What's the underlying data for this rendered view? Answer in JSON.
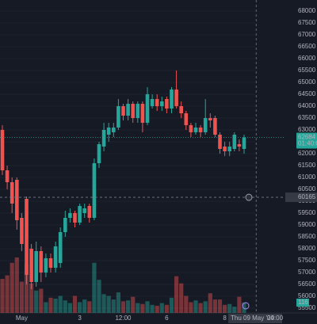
{
  "chart_data": {
    "type": "candlestick",
    "categories": [
      null,
      null,
      null,
      null,
      "May",
      null,
      null,
      null,
      null,
      null,
      null,
      null,
      null,
      null,
      null,
      null,
      "3",
      null,
      null,
      null,
      null,
      null,
      null,
      null,
      null,
      "12:00",
      null,
      null,
      null,
      null,
      null,
      null,
      null,
      null,
      "6",
      null,
      null,
      null,
      null,
      null,
      null,
      null,
      null,
      null,
      null,
      null,
      "8",
      null,
      null,
      null,
      null
    ],
    "open": [
      63000,
      61300,
      60800,
      60900,
      59300,
      60100,
      58000,
      56600,
      57900,
      57000,
      57600,
      57200,
      57400,
      58700,
      59300,
      59500,
      59100,
      59500,
      59800,
      59300,
      61600,
      62300,
      62800,
      62900,
      63100,
      64000,
      63600,
      64100,
      63500,
      64100,
      63300,
      64000,
      64300,
      64000,
      64300,
      63900,
      64700,
      64000,
      63700,
      63200,
      62900,
      63100,
      62900,
      63500,
      63500,
      62800,
      62300,
      62100,
      62200,
      62400,
      62200
    ],
    "high": [
      63200,
      61500,
      61000,
      61000,
      59500,
      60200,
      58200,
      58300,
      58100,
      57800,
      57800,
      58300,
      58900,
      59600,
      59700,
      59600,
      59900,
      59900,
      59900,
      61800,
      62500,
      63300,
      63300,
      63300,
      64300,
      64100,
      64300,
      64200,
      64200,
      64200,
      64800,
      64500,
      64500,
      64400,
      64400,
      64800,
      65500,
      64200,
      63800,
      63300,
      63300,
      63200,
      64300,
      63700,
      63600,
      62900,
      62500,
      62500,
      62900,
      62600,
      62800
    ],
    "low": [
      61100,
      60500,
      59500,
      58800,
      57900,
      56500,
      56300,
      56400,
      56600,
      56800,
      57000,
      57000,
      57200,
      58500,
      59100,
      58900,
      59000,
      59300,
      59100,
      59200,
      61400,
      62100,
      62500,
      62700,
      63000,
      63400,
      63400,
      63300,
      63300,
      62900,
      63200,
      63900,
      63800,
      63800,
      63700,
      63700,
      63900,
      63500,
      63000,
      62700,
      62800,
      62700,
      62800,
      63100,
      62700,
      62000,
      61900,
      61900,
      62100,
      62100,
      62000
    ],
    "close": [
      61300,
      60800,
      59900,
      59200,
      58200,
      56900,
      56600,
      57900,
      57000,
      57600,
      57200,
      58100,
      58700,
      59300,
      59500,
      59100,
      59800,
      59700,
      59300,
      61600,
      62400,
      63000,
      63100,
      63100,
      64000,
      63600,
      64100,
      63500,
      64100,
      63300,
      64500,
      64300,
      64000,
      64200,
      63900,
      64700,
      64000,
      63700,
      63200,
      62900,
      63100,
      62900,
      63500,
      63400,
      62800,
      62200,
      62100,
      62300,
      62800,
      62300,
      62684
    ],
    "volume": [
      380,
      420,
      560,
      620,
      350,
      550,
      330,
      250,
      270,
      120,
      170,
      160,
      190,
      140,
      110,
      190,
      120,
      150,
      130,
      560,
      370,
      210,
      190,
      150,
      230,
      130,
      140,
      180,
      110,
      100,
      130,
      90,
      80,
      110,
      90,
      170,
      410,
      330,
      190,
      120,
      140,
      110,
      130,
      220,
      150,
      150,
      90,
      100,
      70,
      180,
      116
    ],
    "up_color": "#26a69a",
    "down_color": "#ef5350",
    "ylim": [
      55300,
      68467
    ],
    "yticks": [
      55500,
      56000,
      56500,
      57000,
      57500,
      58000,
      58500,
      59000,
      59500,
      60000,
      60500,
      61000,
      61500,
      62000,
      62500,
      63000,
      63500,
      64000,
      64500,
      65000,
      65500,
      66000,
      66500,
      67000,
      67500,
      68000
    ],
    "grid": true,
    "last_price": 62684,
    "countdown": "01:40:00",
    "crosshair_price": 60165,
    "crosshair_time": "Thu 09 May '24",
    "crosshair_clock": "00:00",
    "last_volume_label": "116"
  }
}
